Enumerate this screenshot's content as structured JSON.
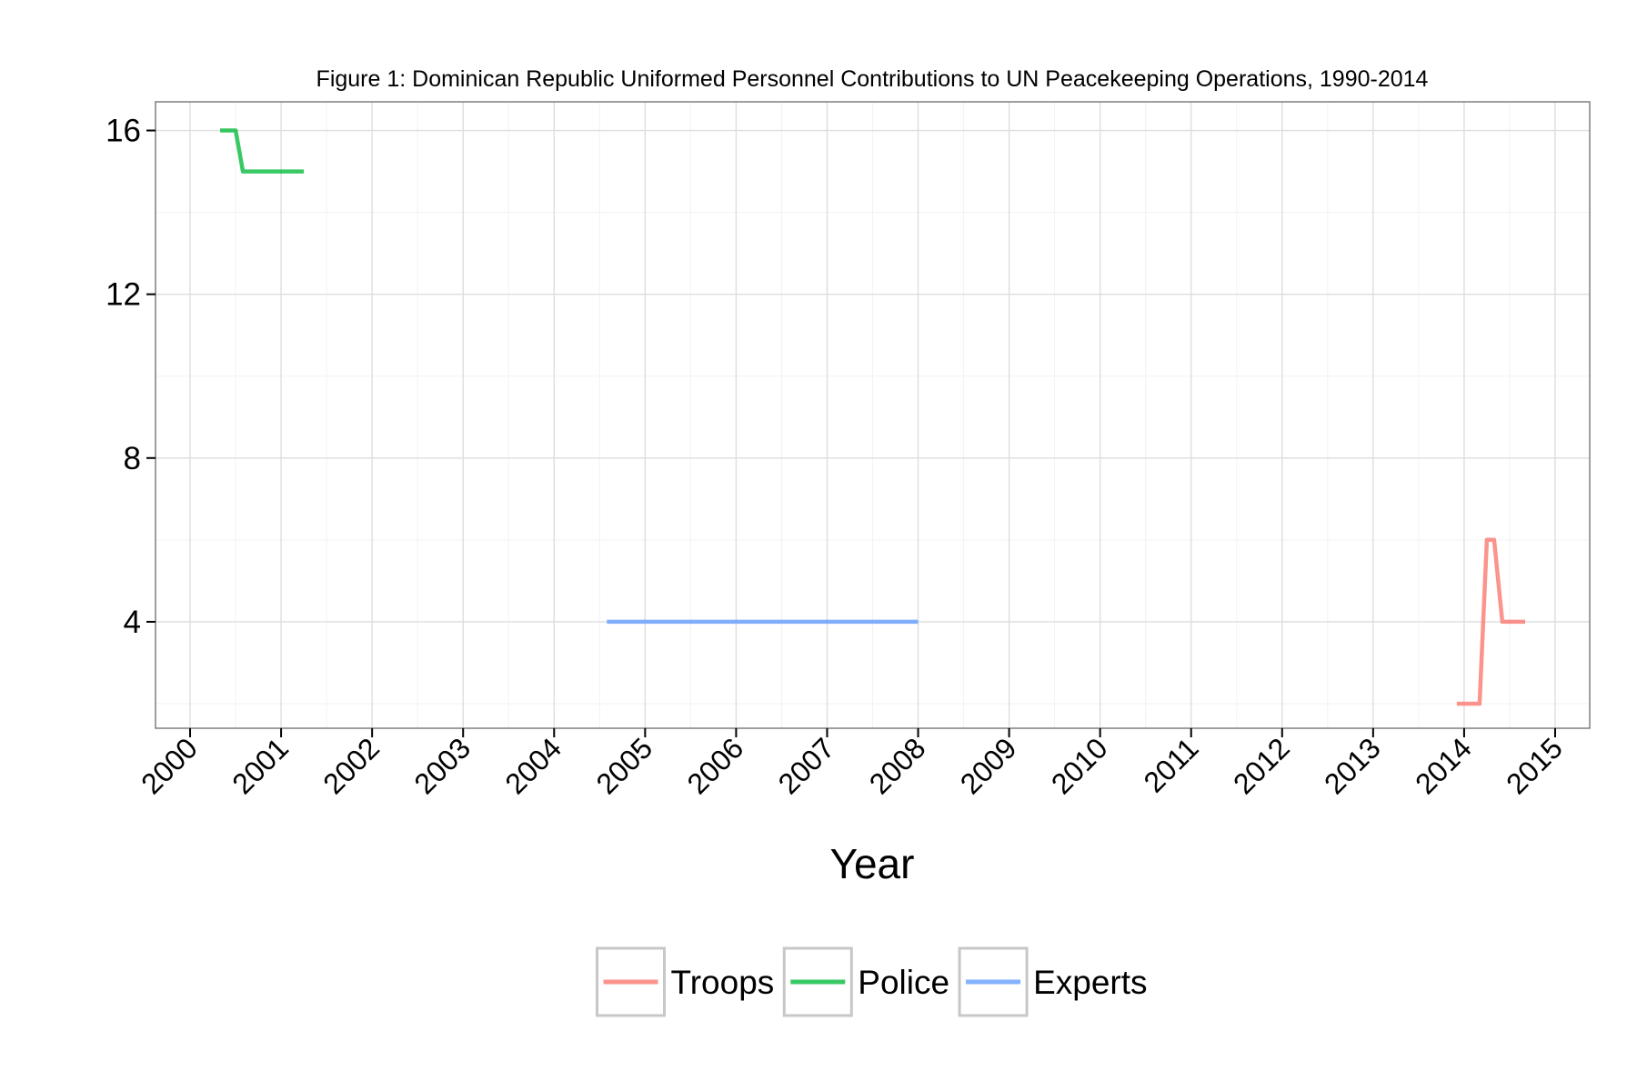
{
  "chart_data": {
    "type": "line",
    "title": "Figure 1: Dominican Republic Uniformed Personnel Contributions to UN Peacekeeping Operations, 1990-2014",
    "xlabel": "Year",
    "ylabel": "",
    "xlim": [
      1999.62,
      2015.38
    ],
    "ylim": [
      1.4,
      16.7
    ],
    "x_ticks": [
      2000,
      2001,
      2002,
      2003,
      2004,
      2005,
      2006,
      2007,
      2008,
      2009,
      2010,
      2011,
      2012,
      2013,
      2014,
      2015
    ],
    "x_tick_labels": [
      "2000",
      "2001",
      "2002",
      "2003",
      "2004",
      "2005",
      "2006",
      "2007",
      "2008",
      "2009",
      "2010",
      "2011",
      "2012",
      "2013",
      "2014",
      "2015"
    ],
    "y_ticks": [
      4,
      8,
      12,
      16
    ],
    "y_tick_labels": [
      "4",
      "8",
      "12",
      "16"
    ],
    "grid": true,
    "legend_position": "bottom",
    "series": [
      {
        "name": "Troops",
        "color": "#F8766D",
        "points": [
          [
            2013.92,
            2
          ],
          [
            2014.17,
            2
          ],
          [
            2014.25,
            6
          ],
          [
            2014.33,
            6
          ],
          [
            2014.42,
            4
          ],
          [
            2014.67,
            4
          ]
        ]
      },
      {
        "name": "Police",
        "color": "#00BA38",
        "points": [
          [
            2000.33,
            16
          ],
          [
            2000.5,
            16
          ],
          [
            2000.58,
            15
          ],
          [
            2001.25,
            15
          ]
        ]
      },
      {
        "name": "Experts",
        "color": "#619CFF",
        "points": [
          [
            2004.58,
            4
          ],
          [
            2008.0,
            4
          ]
        ]
      }
    ]
  }
}
